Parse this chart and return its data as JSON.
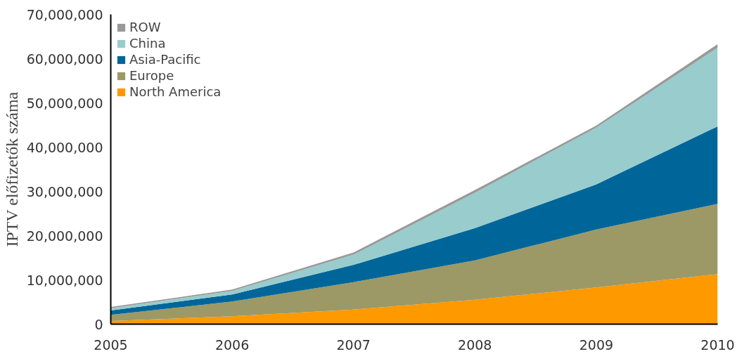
{
  "chart_data": {
    "type": "area",
    "stacked": true,
    "ylabel": "IPTV előfizetők száma",
    "x": [
      2005,
      2006,
      2007,
      2008,
      2009,
      2010
    ],
    "series": [
      {
        "name": "North America",
        "color": "#ff9900",
        "values": [
          700000,
          1800000,
          3300000,
          5500000,
          8300000,
          11300000
        ]
      },
      {
        "name": "Europe",
        "color": "#9c9966",
        "values": [
          1400000,
          3300000,
          6200000,
          8900000,
          13100000,
          15900000
        ]
      },
      {
        "name": "Asia-Pacific",
        "color": "#006699",
        "values": [
          1000000,
          1600000,
          3900000,
          7300000,
          10200000,
          17500000
        ]
      },
      {
        "name": "China",
        "color": "#99cccc",
        "values": [
          500000,
          800000,
          2300000,
          8000000,
          12800000,
          17800000
        ]
      },
      {
        "name": "ROW",
        "color": "#999999",
        "values": [
          300000,
          300000,
          500000,
          600000,
          500000,
          800000
        ]
      }
    ],
    "xlim": [
      2005,
      2010
    ],
    "xticks": [
      2005,
      2006,
      2007,
      2008,
      2009,
      2010
    ],
    "ylim": [
      0,
      70000000
    ],
    "yticks": [
      0,
      {
        "value": 10000000,
        "label": "10,000,000"
      },
      {
        "value": 20000000,
        "label": "20,000,000"
      },
      {
        "value": 30000000,
        "label": "30,000,000"
      },
      {
        "value": 40000000,
        "label": "40,000,000"
      },
      {
        "value": 50000000,
        "label": "50,000,000"
      },
      {
        "value": 60000000,
        "label": "60,000,000"
      },
      {
        "value": 70000000,
        "label": "70,000,000"
      }
    ],
    "grid": false,
    "legend": "top left"
  }
}
